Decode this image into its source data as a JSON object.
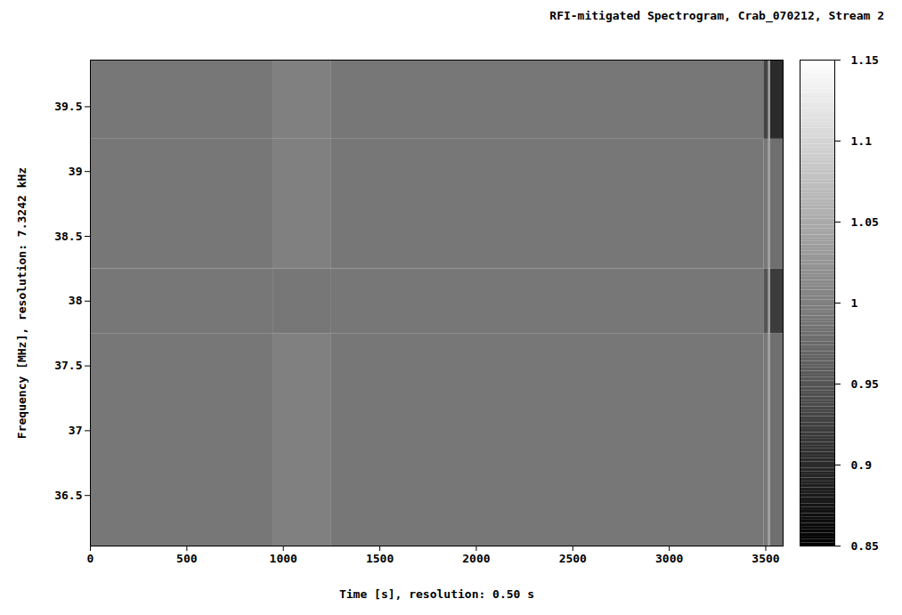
{
  "chart_data": {
    "type": "heatmap",
    "title": "RFI-mitigated Spectrogram, Crab_070212, Stream 2",
    "x_label": "Time [s], resolution: 0.50 s",
    "y_label": "Frequency [MHz], resolution: 7.3242 kHz",
    "xlim": [
      0,
      3590
    ],
    "ylim": [
      36.11,
      39.86
    ],
    "xticks": [
      0,
      500,
      1000,
      1500,
      2000,
      2500,
      3000,
      3500
    ],
    "yticks": [
      36.5,
      37,
      37.5,
      38,
      38.5,
      39,
      39.5
    ],
    "cells": {
      "x_edges": [
        0,
        950,
        1250,
        3490,
        3515,
        3525,
        3590
      ],
      "y_edges": [
        36.11,
        37.75,
        38.25,
        39.25,
        39.86
      ],
      "values": [
        [
          0.99,
          1.0,
          0.99,
          0.99,
          1.04,
          0.98
        ],
        [
          0.99,
          0.99,
          0.99,
          0.95,
          1.04,
          0.92
        ],
        [
          0.99,
          1.0,
          0.99,
          0.99,
          1.04,
          0.98
        ],
        [
          0.99,
          1.0,
          0.99,
          0.93,
          1.04,
          0.9
        ]
      ]
    },
    "colorbar": {
      "range": [
        0.85,
        1.15
      ],
      "ticks": [
        0.85,
        0.9,
        0.95,
        1,
        1.05,
        1.1,
        1.15
      ]
    }
  }
}
